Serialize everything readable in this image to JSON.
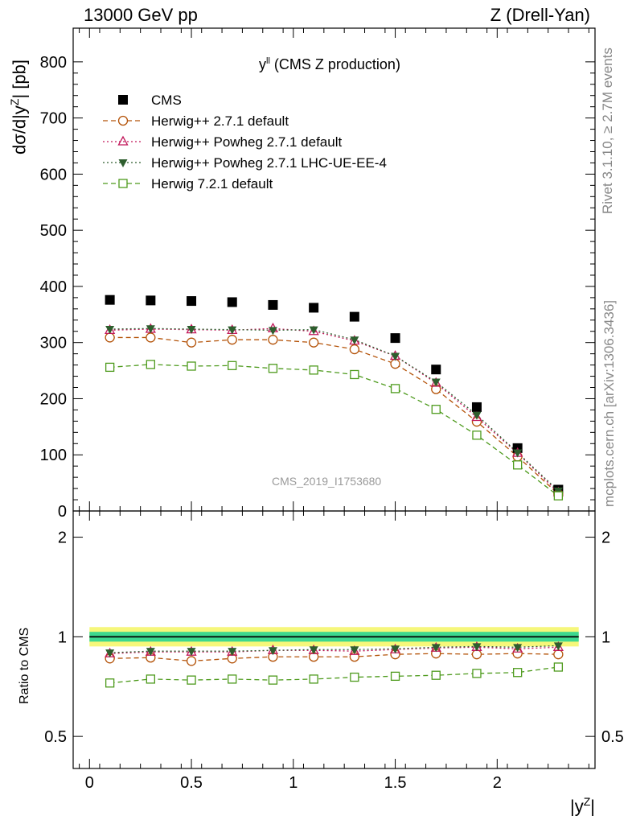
{
  "header": {
    "left": "13000 GeV pp",
    "right": "Z (Drell-Yan)"
  },
  "side": {
    "rivet": "Rivet 3.1.10, ≥ 2.7M events",
    "mcplots": "mcplots.cern.ch [arXiv:1306.3436]"
  },
  "chart_data": [
    {
      "type": "scatter",
      "title": "y",
      "title_sup": "ll",
      "title_suffix": " (CMS Z production)",
      "ylabel": "dσ/d|y",
      "ylabel_sup": "Z",
      "ylabel_suffix": "| [pb]",
      "watermark": "CMS_2019_I1753680",
      "xlim": [
        -0.08,
        2.48
      ],
      "ylim": [
        0,
        860
      ],
      "yticks": [
        0,
        100,
        200,
        300,
        400,
        500,
        600,
        700,
        800
      ],
      "ytick_labels": [
        "0",
        "100",
        "200",
        "300",
        "400",
        "500",
        "600",
        "700",
        "800"
      ],
      "x": [
        0.1,
        0.3,
        0.5,
        0.7,
        0.9,
        1.1,
        1.3,
        1.5,
        1.7,
        1.9,
        2.1,
        2.3
      ],
      "series": [
        {
          "name": "CMS",
          "color": "#000000",
          "marker": "square-filled",
          "line": "none",
          "values": [
            376,
            375,
            374,
            372,
            367,
            362,
            346,
            308,
            252,
            185,
            112,
            38
          ]
        },
        {
          "name": "Herwig++ 2.7.1 default",
          "color": "#b45309",
          "marker": "circle-open",
          "line": "dashed",
          "values": [
            309,
            309,
            300,
            305,
            305,
            300,
            288,
            262,
            217,
            159,
            97,
            30
          ]
        },
        {
          "name": "Herwig++ Powheg 2.7.1 default",
          "color": "#c2185b",
          "marker": "triangle-open",
          "line": "dotted",
          "values": [
            322,
            324,
            323,
            322,
            325,
            320,
            303,
            276,
            228,
            167,
            103,
            33
          ]
        },
        {
          "name": "Herwig++ Powheg 2.7.1 LHC-UE-EE-4",
          "color": "#2e5e2e",
          "marker": "triangle-down-filled",
          "line": "dotted",
          "values": [
            324,
            325,
            324,
            323,
            322,
            323,
            305,
            276,
            230,
            171,
            104,
            36
          ]
        },
        {
          "name": "Herwig 7.2.1 default",
          "color": "#4d9a1c",
          "marker": "square-open",
          "line": "dashed",
          "values": [
            256,
            261,
            258,
            259,
            254,
            251,
            243,
            218,
            181,
            135,
            82,
            27
          ]
        }
      ]
    },
    {
      "type": "scatter",
      "ylabel": "Ratio to CMS",
      "xlabel": "|y",
      "xlabel_sup": "Z",
      "xlabel_suffix": "|",
      "xlim": [
        -0.08,
        2.48
      ],
      "ylim": [
        0.4,
        2.4
      ],
      "yticks": [
        0.5,
        1,
        2
      ],
      "ytick_labels": [
        "0.5",
        "1",
        "2"
      ],
      "xticks": [
        0,
        0.5,
        1,
        1.5,
        2
      ],
      "xtick_labels": [
        "0",
        "0.5",
        "1",
        "1.5",
        "2"
      ],
      "x": [
        0.1,
        0.3,
        0.5,
        0.7,
        0.9,
        1.1,
        1.3,
        1.5,
        1.7,
        1.9,
        2.1,
        2.3
      ],
      "series": [
        {
          "name": "Herwig++ 2.7.1 default",
          "color": "#b45309",
          "marker": "circle-open",
          "line": "dashed",
          "values": [
            0.86,
            0.865,
            0.845,
            0.86,
            0.87,
            0.87,
            0.87,
            0.885,
            0.89,
            0.885,
            0.89,
            0.885
          ]
        },
        {
          "name": "Herwig++ Powheg 2.7.1 default",
          "color": "#c2185b",
          "marker": "triangle-open",
          "line": "dotted",
          "values": [
            0.89,
            0.9,
            0.9,
            0.9,
            0.91,
            0.91,
            0.905,
            0.915,
            0.925,
            0.93,
            0.92,
            0.93
          ]
        },
        {
          "name": "Herwig++ Powheg 2.7.1 LHC-UE-EE-4",
          "color": "#2e5e2e",
          "marker": "triangle-down-filled",
          "line": "dotted",
          "values": [
            0.895,
            0.905,
            0.905,
            0.905,
            0.91,
            0.915,
            0.915,
            0.92,
            0.93,
            0.935,
            0.93,
            0.94
          ]
        },
        {
          "name": "Herwig 7.2.1 default",
          "color": "#4d9a1c",
          "marker": "square-open",
          "line": "dashed",
          "values": [
            0.725,
            0.745,
            0.74,
            0.745,
            0.74,
            0.745,
            0.755,
            0.76,
            0.765,
            0.775,
            0.78,
            0.81
          ]
        }
      ],
      "reference": {
        "value": 1,
        "color": "#000000",
        "band_inner_color": "#3cd88f",
        "band_outer_color": "#f6f77a"
      }
    }
  ]
}
